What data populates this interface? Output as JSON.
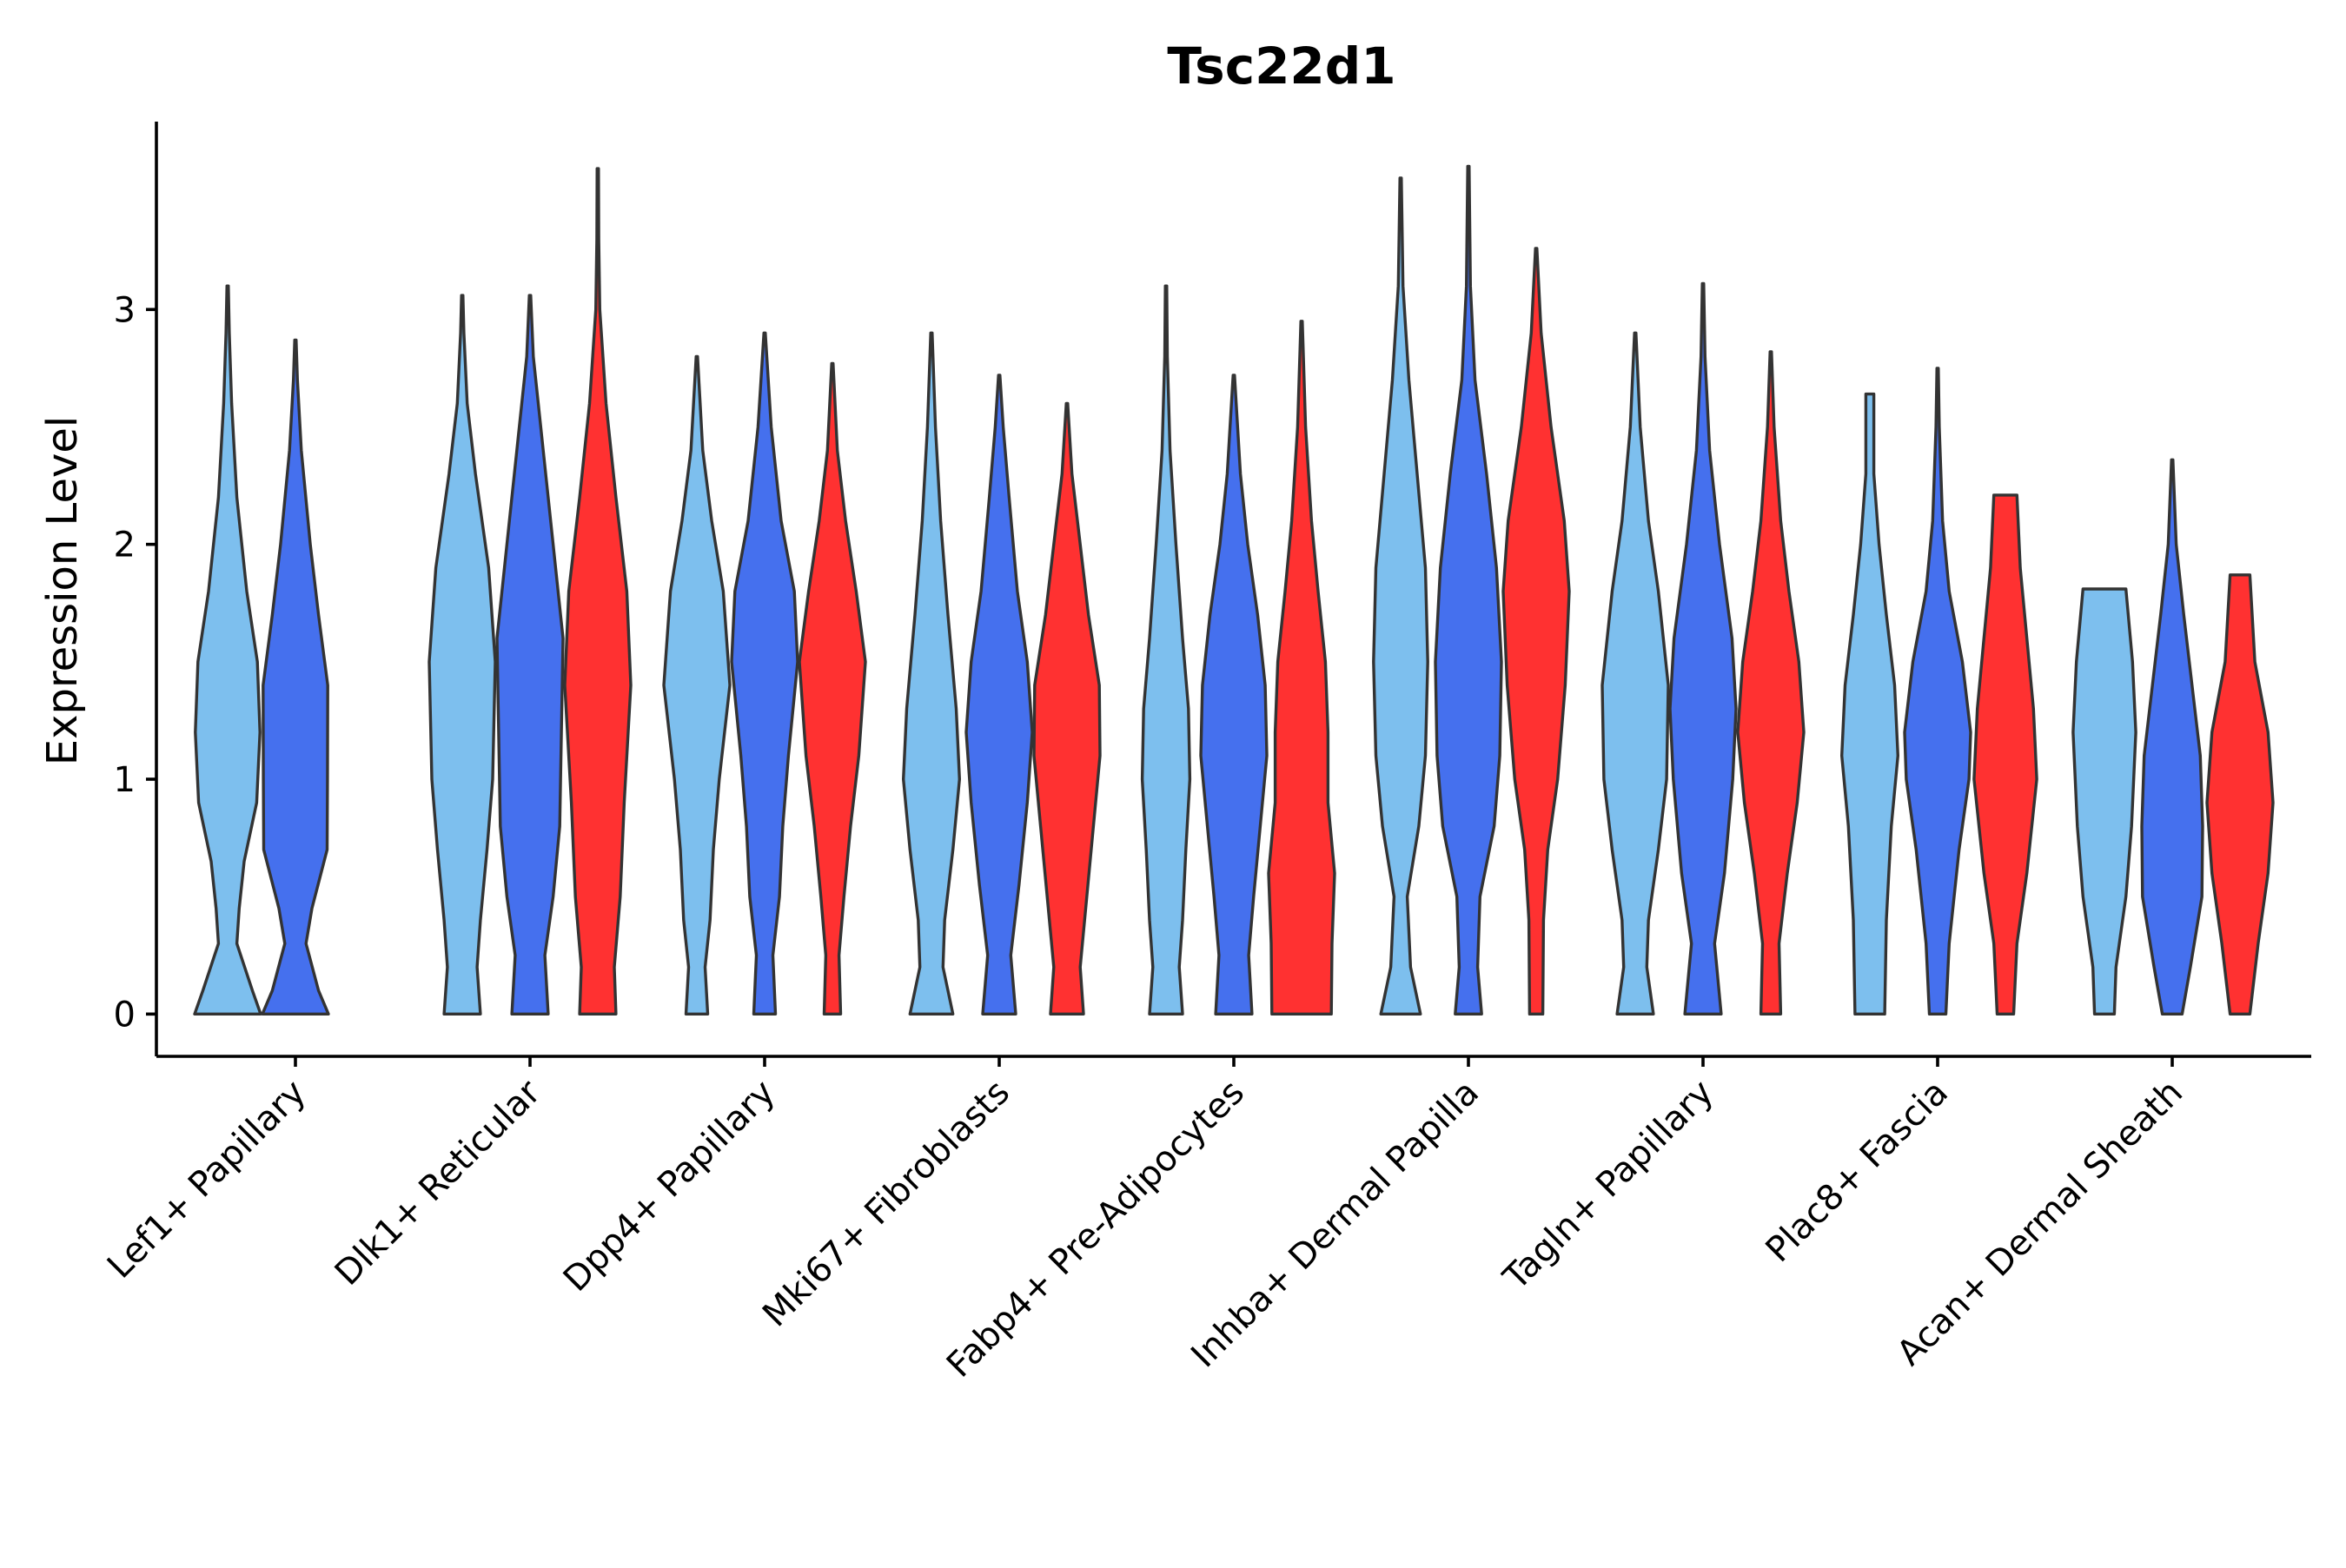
{
  "chart_data": {
    "type": "violin",
    "title": "Tsc22d1",
    "xlabel": "",
    "ylabel": "Expression Level",
    "ylim": [
      -0.18,
      3.8
    ],
    "yticks": [
      0,
      1,
      2,
      3
    ],
    "grid": false,
    "legend": "none",
    "series_colors": [
      "#7DBFEE",
      "#4570EE",
      "#FF3131"
    ],
    "categories": [
      "Lef1+ Papillary",
      "Dlk1+ Reticular",
      "Dpp4+ Papillary",
      "Mki67+ Fibroblasts",
      "Fabp4+ Pre-Adipocytes",
      "Inhba+ Dermal Papilla",
      "Tagln+ Papillary",
      "Plac8+ Fascia",
      "Acan+ Dermal Sheath"
    ],
    "violins": [
      {
        "category": "Lef1+ Papillary",
        "group": 1,
        "max": 3.1,
        "profile": [
          [
            0,
            1.0
          ],
          [
            0.1,
            0.75
          ],
          [
            0.3,
            0.28
          ],
          [
            0.45,
            0.35
          ],
          [
            0.65,
            0.5
          ],
          [
            0.9,
            0.88
          ],
          [
            1.2,
            0.98
          ],
          [
            1.5,
            0.9
          ],
          [
            1.8,
            0.58
          ],
          [
            2.2,
            0.28
          ],
          [
            2.6,
            0.12
          ],
          [
            2.9,
            0.05
          ],
          [
            3.1,
            0.02
          ]
        ]
      },
      {
        "category": "Lef1+ Papillary",
        "group": 2,
        "max": 2.87,
        "profile": [
          [
            0,
            1.0
          ],
          [
            0.1,
            0.7
          ],
          [
            0.3,
            0.32
          ],
          [
            0.45,
            0.5
          ],
          [
            0.7,
            0.96
          ],
          [
            1.0,
            0.97
          ],
          [
            1.4,
            0.98
          ],
          [
            1.7,
            0.7
          ],
          [
            2.0,
            0.45
          ],
          [
            2.4,
            0.18
          ],
          [
            2.7,
            0.06
          ],
          [
            2.87,
            0.02
          ]
        ]
      },
      {
        "category": "Dlk1+ Reticular",
        "group": 1,
        "max": 3.06,
        "profile": [
          [
            0,
            0.55
          ],
          [
            0.2,
            0.45
          ],
          [
            0.4,
            0.55
          ],
          [
            0.7,
            0.75
          ],
          [
            1.0,
            0.92
          ],
          [
            1.5,
            1.0
          ],
          [
            1.9,
            0.8
          ],
          [
            2.3,
            0.4
          ],
          [
            2.6,
            0.15
          ],
          [
            2.9,
            0.05
          ],
          [
            3.06,
            0.02
          ]
        ]
      },
      {
        "category": "Dlk1+ Reticular",
        "group": 2,
        "max": 3.06,
        "profile": [
          [
            0,
            0.55
          ],
          [
            0.25,
            0.45
          ],
          [
            0.5,
            0.7
          ],
          [
            0.8,
            0.9
          ],
          [
            1.2,
            0.95
          ],
          [
            1.6,
            1.0
          ],
          [
            2.0,
            0.7
          ],
          [
            2.4,
            0.4
          ],
          [
            2.8,
            0.1
          ],
          [
            3.06,
            0.02
          ]
        ]
      },
      {
        "category": "Dlk1+ Reticular",
        "group": 3,
        "max": 3.6,
        "profile": [
          [
            0,
            0.55
          ],
          [
            0.2,
            0.5
          ],
          [
            0.5,
            0.68
          ],
          [
            0.9,
            0.8
          ],
          [
            1.4,
            1.0
          ],
          [
            1.8,
            0.88
          ],
          [
            2.2,
            0.55
          ],
          [
            2.6,
            0.25
          ],
          [
            3.0,
            0.06
          ],
          [
            3.3,
            0.03
          ],
          [
            3.6,
            0.02
          ]
        ]
      },
      {
        "category": "Dpp4+ Papillary",
        "group": 1,
        "max": 2.8,
        "profile": [
          [
            0,
            0.33
          ],
          [
            0.2,
            0.25
          ],
          [
            0.4,
            0.4
          ],
          [
            0.7,
            0.5
          ],
          [
            1.0,
            0.68
          ],
          [
            1.4,
            1.0
          ],
          [
            1.8,
            0.8
          ],
          [
            2.1,
            0.45
          ],
          [
            2.4,
            0.18
          ],
          [
            2.8,
            0.02
          ]
        ]
      },
      {
        "category": "Dpp4+ Papillary",
        "group": 2,
        "max": 2.9,
        "profile": [
          [
            0,
            0.33
          ],
          [
            0.25,
            0.25
          ],
          [
            0.5,
            0.45
          ],
          [
            0.8,
            0.55
          ],
          [
            1.1,
            0.72
          ],
          [
            1.5,
            1.0
          ],
          [
            1.8,
            0.9
          ],
          [
            2.1,
            0.5
          ],
          [
            2.5,
            0.2
          ],
          [
            2.9,
            0.02
          ]
        ]
      },
      {
        "category": "Dpp4+ Papillary",
        "group": 3,
        "max": 2.77,
        "profile": [
          [
            0,
            0.25
          ],
          [
            0.25,
            0.2
          ],
          [
            0.5,
            0.35
          ],
          [
            0.8,
            0.55
          ],
          [
            1.1,
            0.8
          ],
          [
            1.5,
            1.0
          ],
          [
            1.8,
            0.72
          ],
          [
            2.1,
            0.4
          ],
          [
            2.4,
            0.15
          ],
          [
            2.77,
            0.02
          ]
        ]
      },
      {
        "category": "Mki67+ Fibroblasts",
        "group": 1,
        "max": 2.9,
        "profile": [
          [
            0,
            0.65
          ],
          [
            0.2,
            0.35
          ],
          [
            0.4,
            0.4
          ],
          [
            0.7,
            0.65
          ],
          [
            1.0,
            0.85
          ],
          [
            1.3,
            0.75
          ],
          [
            1.7,
            0.5
          ],
          [
            2.1,
            0.28
          ],
          [
            2.5,
            0.12
          ],
          [
            2.9,
            0.02
          ]
        ]
      },
      {
        "category": "Mki67+ Fibroblasts",
        "group": 2,
        "max": 2.72,
        "profile": [
          [
            0,
            0.5
          ],
          [
            0.25,
            0.35
          ],
          [
            0.55,
            0.6
          ],
          [
            0.9,
            0.85
          ],
          [
            1.2,
            1.0
          ],
          [
            1.5,
            0.85
          ],
          [
            1.8,
            0.55
          ],
          [
            2.2,
            0.3
          ],
          [
            2.5,
            0.12
          ],
          [
            2.72,
            0.02
          ]
        ]
      },
      {
        "category": "Mki67+ Fibroblasts",
        "group": 3,
        "max": 2.6,
        "profile": [
          [
            0,
            0.5
          ],
          [
            0.2,
            0.4
          ],
          [
            0.5,
            0.6
          ],
          [
            0.8,
            0.8
          ],
          [
            1.1,
            1.0
          ],
          [
            1.4,
            0.98
          ],
          [
            1.7,
            0.65
          ],
          [
            2.0,
            0.4
          ],
          [
            2.3,
            0.15
          ],
          [
            2.6,
            0.02
          ]
        ]
      },
      {
        "category": "Fabp4+ Pre-Adipocytes",
        "group": 1,
        "max": 3.1,
        "profile": [
          [
            0,
            0.5
          ],
          [
            0.2,
            0.4
          ],
          [
            0.4,
            0.5
          ],
          [
            0.7,
            0.6
          ],
          [
            1.0,
            0.72
          ],
          [
            1.3,
            0.68
          ],
          [
            1.6,
            0.5
          ],
          [
            2.0,
            0.3
          ],
          [
            2.4,
            0.12
          ],
          [
            2.8,
            0.04
          ],
          [
            3.1,
            0.02
          ]
        ]
      },
      {
        "category": "Fabp4+ Pre-Adipocytes",
        "group": 2,
        "max": 2.72,
        "profile": [
          [
            0,
            0.55
          ],
          [
            0.25,
            0.45
          ],
          [
            0.5,
            0.6
          ],
          [
            0.8,
            0.8
          ],
          [
            1.1,
            1.0
          ],
          [
            1.4,
            0.95
          ],
          [
            1.7,
            0.72
          ],
          [
            2.0,
            0.42
          ],
          [
            2.3,
            0.2
          ],
          [
            2.72,
            0.02
          ]
        ]
      },
      {
        "category": "Fabp4+ Pre-Adipocytes",
        "group": 3,
        "max": 2.95,
        "profile": [
          [
            0,
            0.9
          ],
          [
            0.3,
            0.92
          ],
          [
            0.6,
            1.0
          ],
          [
            0.9,
            0.8
          ],
          [
            1.2,
            0.8
          ],
          [
            1.5,
            0.72
          ],
          [
            1.8,
            0.5
          ],
          [
            2.1,
            0.3
          ],
          [
            2.5,
            0.12
          ],
          [
            2.95,
            0.02
          ]
        ]
      },
      {
        "category": "Inhba+ Dermal Papilla",
        "group": 1,
        "max": 3.56,
        "profile": [
          [
            0,
            0.6
          ],
          [
            0.2,
            0.3
          ],
          [
            0.5,
            0.2
          ],
          [
            0.8,
            0.55
          ],
          [
            1.1,
            0.75
          ],
          [
            1.5,
            0.82
          ],
          [
            1.9,
            0.75
          ],
          [
            2.3,
            0.5
          ],
          [
            2.7,
            0.25
          ],
          [
            3.1,
            0.07
          ],
          [
            3.56,
            0.02
          ]
        ]
      },
      {
        "category": "Inhba+ Dermal Papilla",
        "group": 2,
        "max": 3.61,
        "profile": [
          [
            0,
            0.4
          ],
          [
            0.2,
            0.28
          ],
          [
            0.5,
            0.35
          ],
          [
            0.8,
            0.78
          ],
          [
            1.1,
            0.95
          ],
          [
            1.5,
            1.0
          ],
          [
            1.9,
            0.85
          ],
          [
            2.3,
            0.55
          ],
          [
            2.7,
            0.2
          ],
          [
            3.1,
            0.06
          ],
          [
            3.61,
            0.02
          ]
        ]
      },
      {
        "category": "Inhba+ Dermal Papilla",
        "group": 3,
        "max": 3.26,
        "profile": [
          [
            0,
            0.2
          ],
          [
            0.4,
            0.22
          ],
          [
            0.7,
            0.35
          ],
          [
            1.0,
            0.65
          ],
          [
            1.4,
            0.88
          ],
          [
            1.8,
            1.0
          ],
          [
            2.1,
            0.85
          ],
          [
            2.5,
            0.45
          ],
          [
            2.9,
            0.15
          ],
          [
            3.26,
            0.02
          ]
        ]
      },
      {
        "category": "Tagln+ Papillary",
        "group": 1,
        "max": 2.9,
        "profile": [
          [
            0,
            0.55
          ],
          [
            0.2,
            0.35
          ],
          [
            0.4,
            0.4
          ],
          [
            0.7,
            0.7
          ],
          [
            1.0,
            0.95
          ],
          [
            1.4,
            1.0
          ],
          [
            1.8,
            0.7
          ],
          [
            2.1,
            0.4
          ],
          [
            2.5,
            0.15
          ],
          [
            2.9,
            0.02
          ]
        ]
      },
      {
        "category": "Tagln+ Papillary",
        "group": 2,
        "max": 3.11,
        "profile": [
          [
            0,
            0.55
          ],
          [
            0.3,
            0.35
          ],
          [
            0.6,
            0.65
          ],
          [
            1.0,
            0.9
          ],
          [
            1.3,
            1.0
          ],
          [
            1.6,
            0.88
          ],
          [
            2.0,
            0.5
          ],
          [
            2.4,
            0.2
          ],
          [
            2.8,
            0.06
          ],
          [
            3.11,
            0.02
          ]
        ]
      },
      {
        "category": "Tagln+ Papillary",
        "group": 3,
        "max": 2.82,
        "profile": [
          [
            0,
            0.3
          ],
          [
            0.3,
            0.25
          ],
          [
            0.6,
            0.5
          ],
          [
            0.9,
            0.8
          ],
          [
            1.2,
            1.0
          ],
          [
            1.5,
            0.85
          ],
          [
            1.8,
            0.55
          ],
          [
            2.1,
            0.3
          ],
          [
            2.5,
            0.1
          ],
          [
            2.82,
            0.02
          ]
        ]
      },
      {
        "category": "Plac8+ Fascia",
        "group": 1,
        "max": 2.64,
        "profile": [
          [
            0,
            0.45
          ],
          [
            0.4,
            0.5
          ],
          [
            0.8,
            0.65
          ],
          [
            1.1,
            0.85
          ],
          [
            1.4,
            0.75
          ],
          [
            1.7,
            0.5
          ],
          [
            2.0,
            0.28
          ],
          [
            2.3,
            0.12
          ],
          [
            2.64,
            0.12
          ]
        ]
      },
      {
        "category": "Plac8+ Fascia",
        "group": 2,
        "max": 2.75,
        "profile": [
          [
            0,
            0.25
          ],
          [
            0.3,
            0.35
          ],
          [
            0.7,
            0.65
          ],
          [
            1.0,
            0.95
          ],
          [
            1.2,
            1.0
          ],
          [
            1.5,
            0.75
          ],
          [
            1.8,
            0.35
          ],
          [
            2.1,
            0.15
          ],
          [
            2.5,
            0.05
          ],
          [
            2.75,
            0.02
          ]
        ]
      },
      {
        "category": "Plac8+ Fascia",
        "group": 3,
        "max": 2.21,
        "profile": [
          [
            0,
            0.25
          ],
          [
            0.3,
            0.35
          ],
          [
            0.6,
            0.65
          ],
          [
            1.0,
            0.95
          ],
          [
            1.3,
            0.85
          ],
          [
            1.6,
            0.65
          ],
          [
            1.9,
            0.45
          ],
          [
            2.21,
            0.35
          ]
        ]
      },
      {
        "category": "Acan+ Dermal Sheath",
        "group": 1,
        "max": 1.81,
        "profile": [
          [
            0,
            0.3
          ],
          [
            0.2,
            0.35
          ],
          [
            0.5,
            0.65
          ],
          [
            0.8,
            0.82
          ],
          [
            1.2,
            0.95
          ],
          [
            1.5,
            0.85
          ],
          [
            1.81,
            0.65
          ]
        ]
      },
      {
        "category": "Acan+ Dermal Sheath",
        "group": 2,
        "max": 2.36,
        "profile": [
          [
            0,
            0.3
          ],
          [
            0.2,
            0.55
          ],
          [
            0.5,
            0.9
          ],
          [
            0.8,
            0.92
          ],
          [
            1.1,
            0.85
          ],
          [
            1.4,
            0.6
          ],
          [
            1.7,
            0.35
          ],
          [
            2.0,
            0.12
          ],
          [
            2.36,
            0.02
          ]
        ]
      },
      {
        "category": "Acan+ Dermal Sheath",
        "group": 3,
        "max": 1.87,
        "profile": [
          [
            0,
            0.3
          ],
          [
            0.3,
            0.55
          ],
          [
            0.6,
            0.85
          ],
          [
            0.9,
            1.0
          ],
          [
            1.2,
            0.85
          ],
          [
            1.5,
            0.45
          ],
          [
            1.87,
            0.3
          ]
        ]
      }
    ]
  }
}
